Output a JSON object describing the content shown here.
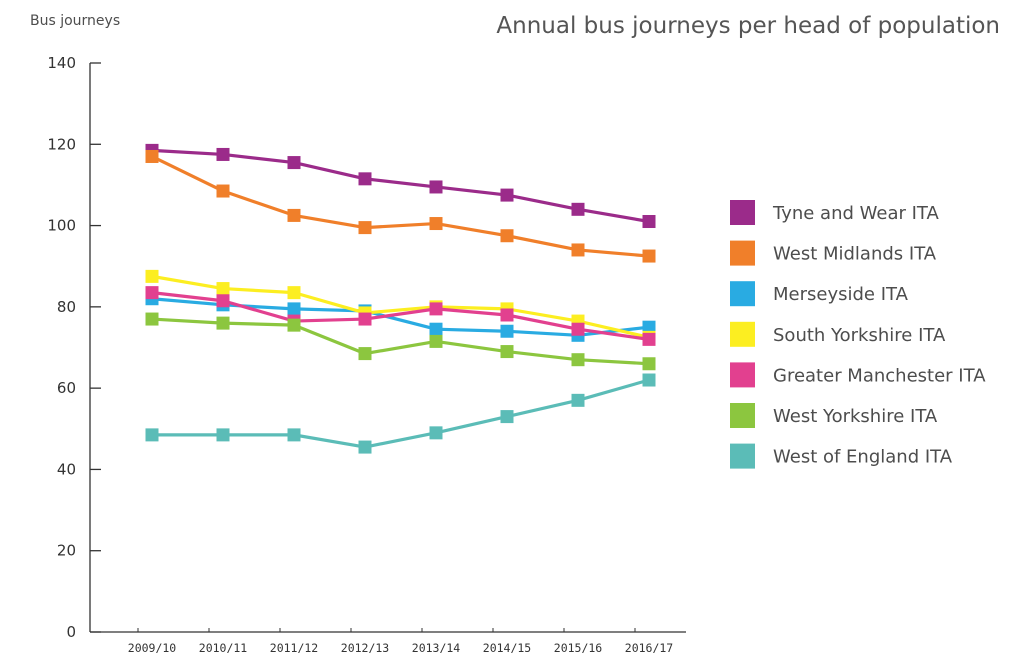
{
  "chart_data": {
    "type": "line",
    "title": "Annual bus journeys per head of population",
    "ylabel": "Bus journeys",
    "xlabel": "",
    "categories": [
      "2009/10",
      "2010/11",
      "2011/12",
      "2012/13",
      "2013/14",
      "2014/15",
      "2015/16",
      "2016/17"
    ],
    "ylim": [
      0,
      140
    ],
    "yticks": [
      0,
      20,
      40,
      60,
      80,
      100,
      120,
      140
    ],
    "grid": false,
    "legend_position": "right",
    "series": [
      {
        "name": "Tyne and Wear ITA",
        "color": "#9b2b8a",
        "values": [
          118.5,
          117.5,
          115.5,
          111.5,
          109.5,
          107.5,
          104,
          101
        ]
      },
      {
        "name": "West Midlands ITA",
        "color": "#f07f2a",
        "values": [
          117,
          108.5,
          102.5,
          99.5,
          100.5,
          97.5,
          94,
          92.5
        ]
      },
      {
        "name": "Merseyside ITA",
        "color": "#29abe2",
        "values": [
          82,
          80.5,
          79.5,
          79,
          74.5,
          74,
          73,
          75
        ]
      },
      {
        "name": "South Yorkshire ITA",
        "color": "#fcee21",
        "values": [
          87.5,
          84.5,
          83.5,
          78.5,
          80,
          79.5,
          76.5,
          72.5
        ]
      },
      {
        "name": "Greater Manchester ITA",
        "color": "#e2408f",
        "values": [
          83.5,
          81.5,
          76.5,
          77,
          79.5,
          78,
          74.5,
          72
        ]
      },
      {
        "name": "West Yorkshire ITA",
        "color": "#8cc63f",
        "values": [
          77,
          76,
          75.5,
          68.5,
          71.5,
          69,
          67,
          66
        ]
      },
      {
        "name": "West of England ITA",
        "color": "#5bbcb7",
        "values": [
          48.5,
          48.5,
          48.5,
          45.5,
          49,
          53,
          57,
          62
        ]
      }
    ]
  }
}
